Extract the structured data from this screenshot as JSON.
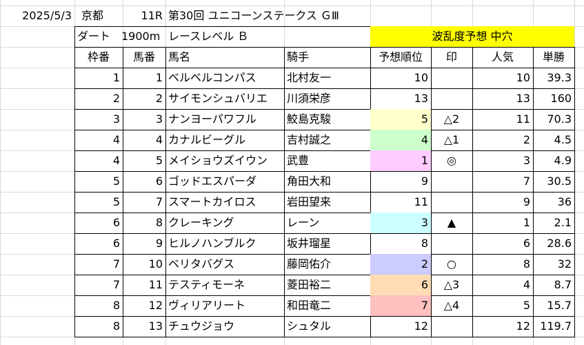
{
  "race": {
    "date": "2025/5/3",
    "venue": "京都",
    "race_no": "11R",
    "race_name": "第30回 ユニコーンステークス ＧⅢ",
    "surface": "ダート",
    "distance": "1900m",
    "race_level": "レースレベル Ｂ",
    "forecast": "波乱度予想 中穴"
  },
  "colors": {
    "forecast_bg": "#ffff00",
    "rank1": "#ffccff",
    "rank2": "#ccccff",
    "rank3": "#ccffff",
    "rank4": "#ccffcc",
    "rank5": "#ffffcc",
    "rank6": "#ffdcb4",
    "rank7": "#ffc0c0"
  },
  "headers": [
    "枠番",
    "馬番",
    "馬名",
    "騎手",
    "予想順位",
    "印",
    "人気",
    "単勝"
  ],
  "rows": [
    {
      "waku": "1",
      "uma": "1",
      "name": "ベルベルコンパス",
      "jockey": "北村友一",
      "rank": "10",
      "mark": "",
      "pop": "10",
      "odds": "39.3",
      "hl": ""
    },
    {
      "waku": "2",
      "uma": "2",
      "name": "サイモンシュバリエ",
      "jockey": "川須栄彦",
      "rank": "13",
      "mark": "",
      "pop": "13",
      "odds": "160",
      "hl": ""
    },
    {
      "waku": "3",
      "uma": "3",
      "name": "ナンヨーパワフル",
      "jockey": "鮫島克駿",
      "rank": "5",
      "mark": "△2",
      "pop": "11",
      "odds": "70.3",
      "hl": "#ffffcc"
    },
    {
      "waku": "4",
      "uma": "4",
      "name": "カナルビーグル",
      "jockey": "吉村誠之",
      "rank": "4",
      "mark": "△1",
      "pop": "2",
      "odds": "4.5",
      "hl": "#ccffcc"
    },
    {
      "waku": "4",
      "uma": "5",
      "name": "メイショウズイウン",
      "jockey": "武豊",
      "rank": "1",
      "mark": "◎",
      "pop": "3",
      "odds": "4.9",
      "hl": "#ffccff"
    },
    {
      "waku": "5",
      "uma": "6",
      "name": "ゴッドエスパーダ",
      "jockey": "角田大和",
      "rank": "9",
      "mark": "",
      "pop": "7",
      "odds": "30.5",
      "hl": ""
    },
    {
      "waku": "5",
      "uma": "7",
      "name": "スマートカイロス",
      "jockey": "岩田望来",
      "rank": "11",
      "mark": "",
      "pop": "9",
      "odds": "36",
      "hl": ""
    },
    {
      "waku": "6",
      "uma": "8",
      "name": "クレーキング",
      "jockey": "レーン",
      "rank": "3",
      "mark": "▲",
      "pop": "1",
      "odds": "2.1",
      "hl": "#ccffff"
    },
    {
      "waku": "6",
      "uma": "9",
      "name": "ヒルノハンブルク",
      "jockey": "坂井瑠星",
      "rank": "8",
      "mark": "",
      "pop": "6",
      "odds": "28.6",
      "hl": ""
    },
    {
      "waku": "7",
      "uma": "10",
      "name": "ベリタバグス",
      "jockey": "藤岡佑介",
      "rank": "2",
      "mark": "○",
      "pop": "8",
      "odds": "32",
      "hl": "#ccccff"
    },
    {
      "waku": "7",
      "uma": "11",
      "name": "テスティモーネ",
      "jockey": "菱田裕二",
      "rank": "6",
      "mark": "△3",
      "pop": "4",
      "odds": "8.7",
      "hl": "#ffdcb4"
    },
    {
      "waku": "8",
      "uma": "12",
      "name": "ヴィリアリート",
      "jockey": "和田竜二",
      "rank": "7",
      "mark": "△4",
      "pop": "5",
      "odds": "15.7",
      "hl": "#ffc0c0"
    },
    {
      "waku": "8",
      "uma": "13",
      "name": "チュウジョウ",
      "jockey": "シュタル",
      "rank": "12",
      "mark": "",
      "pop": "12",
      "odds": "119.7",
      "hl": ""
    }
  ]
}
